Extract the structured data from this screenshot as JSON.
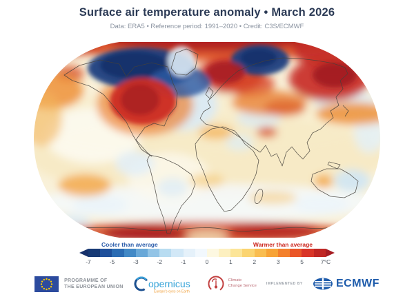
{
  "header": {
    "title": "Surface air temperature anomaly • March 2026",
    "subtitle": "Data: ERA5 • Reference period: 1991–2020 • Credit: C3S/ECMWF"
  },
  "colorbar": {
    "cool_label": "Cooler than average",
    "warm_label": "Warmer than average",
    "cool_label_color": "#2a5caa",
    "warm_label_color": "#cc271f",
    "unit": "°C",
    "ticks": [
      "-7",
      "-5",
      "-3",
      "-2",
      "-1",
      "0",
      "1",
      "2",
      "3",
      "5",
      "7°C"
    ],
    "left_arrow_color": "#16316b",
    "right_arrow_color": "#a61c22",
    "segments": [
      "#173a75",
      "#1e509b",
      "#2b6cb3",
      "#4289c6",
      "#69a8d8",
      "#93c4e6",
      "#b8dcf1",
      "#d2e8f7",
      "#e5f1fa",
      "#f2f8fd",
      "#fdf8e1",
      "#fdf0c0",
      "#fce598",
      "#fbd470",
      "#f9bd50",
      "#f7a336",
      "#f3802c",
      "#ea5627",
      "#d93527",
      "#c02623"
    ]
  },
  "footer": {
    "eu": {
      "line1": "PROGRAMME OF",
      "line2": "THE EUROPEAN UNION"
    },
    "copernicus": {
      "name": "opernicus",
      "tagline": "Europe's eyes on Earth"
    },
    "c3s": {
      "line1": "Climate",
      "line2": "Change Service"
    },
    "implemented_by": "IMPLEMENTED BY",
    "ecmwf": "ECMWF"
  }
}
